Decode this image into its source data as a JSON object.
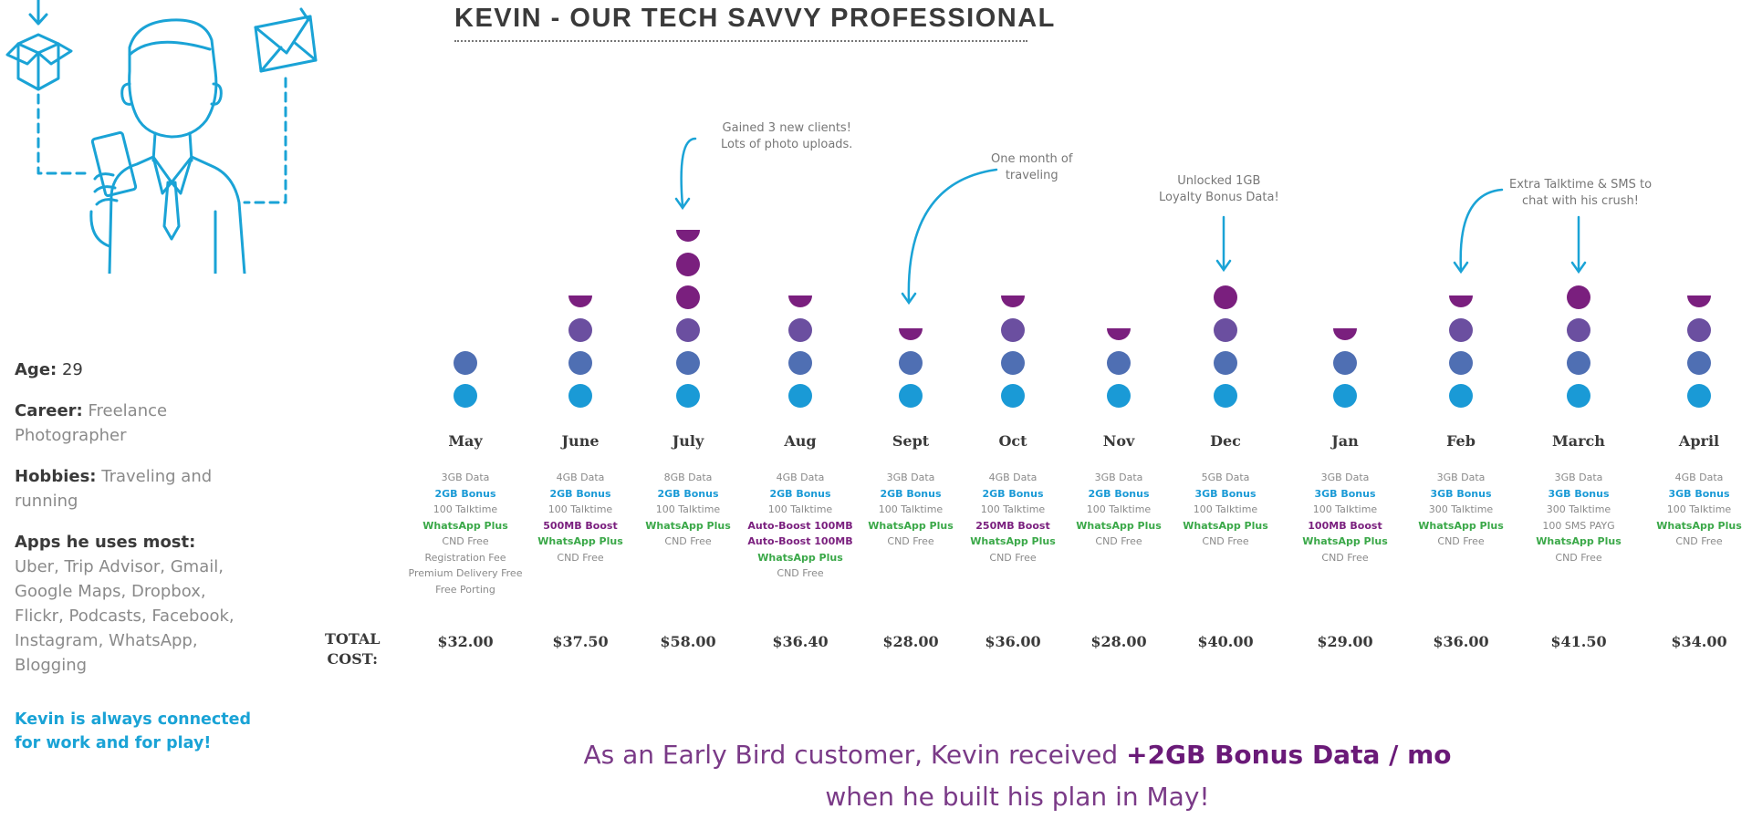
{
  "title": "KEVIN - OUR TECH SAVVY PROFESSIONAL",
  "persona": {
    "age_label": "Age:",
    "age_value": "29",
    "career_label": "Career:",
    "career_value": "Freelance Photographer",
    "hobbies_label": "Hobbies:",
    "hobbies_value": "Traveling and running",
    "apps_label": "Apps he uses most:",
    "apps_value": "Uber, Trip Advisor, Gmail, Google Maps, Dropbox, Flickr, Podcasts, Facebook, Instagram, WhatsApp, Blogging",
    "tagline": "Kevin is always connected for work and for play!"
  },
  "total_label_line1": "TOTAL",
  "total_label_line2": "COST:",
  "months": [
    {
      "name": "May",
      "dots": 2,
      "half": false,
      "cost": "$32.00",
      "lines": [
        [
          "3GB Data",
          "n"
        ],
        [
          "2GB Bonus",
          "b"
        ],
        [
          "100 Talktime",
          "n"
        ],
        [
          "WhatsApp Plus",
          "w"
        ],
        [
          "CND Free",
          "n"
        ],
        [
          "Registration Fee",
          "n"
        ],
        [
          "Premium Delivery Free",
          "n"
        ],
        [
          "Free Porting",
          "n"
        ]
      ]
    },
    {
      "name": "June",
      "dots": 3,
      "half": true,
      "cost": "$37.50",
      "lines": [
        [
          "4GB Data",
          "n"
        ],
        [
          "2GB Bonus",
          "b"
        ],
        [
          "100 Talktime",
          "n"
        ],
        [
          "500MB Boost",
          "p"
        ],
        [
          "WhatsApp Plus",
          "w"
        ],
        [
          "CND Free",
          "n"
        ]
      ]
    },
    {
      "name": "July",
      "dots": 5,
      "half": true,
      "cost": "$58.00",
      "lines": [
        [
          "8GB Data",
          "n"
        ],
        [
          "2GB Bonus",
          "b"
        ],
        [
          "100 Talktime",
          "n"
        ],
        [
          "WhatsApp Plus",
          "w"
        ],
        [
          "CND Free",
          "n"
        ]
      ]
    },
    {
      "name": "Aug",
      "dots": 3,
      "half": true,
      "cost": "$36.40",
      "lines": [
        [
          "4GB Data",
          "n"
        ],
        [
          "2GB Bonus",
          "b"
        ],
        [
          "100 Talktime",
          "n"
        ],
        [
          "Auto-Boost 100MB",
          "p"
        ],
        [
          "Auto-Boost 100MB",
          "p"
        ],
        [
          "WhatsApp Plus",
          "w"
        ],
        [
          "CND Free",
          "n"
        ]
      ]
    },
    {
      "name": "Sept",
      "dots": 2,
      "half": true,
      "cost": "$28.00",
      "lines": [
        [
          "3GB Data",
          "n"
        ],
        [
          "2GB Bonus",
          "b"
        ],
        [
          "100 Talktime",
          "n"
        ],
        [
          "WhatsApp Plus",
          "w"
        ],
        [
          "CND Free",
          "n"
        ]
      ]
    },
    {
      "name": "Oct",
      "dots": 3,
      "half": true,
      "cost": "$36.00",
      "lines": [
        [
          "4GB Data",
          "n"
        ],
        [
          "2GB Bonus",
          "b"
        ],
        [
          "100 Talktime",
          "n"
        ],
        [
          "250MB Boost",
          "p"
        ],
        [
          "WhatsApp Plus",
          "w"
        ],
        [
          "CND Free",
          "n"
        ]
      ]
    },
    {
      "name": "Nov",
      "dots": 2,
      "half": true,
      "cost": "$28.00",
      "lines": [
        [
          "3GB Data",
          "n"
        ],
        [
          "2GB Bonus",
          "b"
        ],
        [
          "100 Talktime",
          "n"
        ],
        [
          "WhatsApp Plus",
          "w"
        ],
        [
          "CND Free",
          "n"
        ]
      ]
    },
    {
      "name": "Dec",
      "dots": 4,
      "half": false,
      "cost": "$40.00",
      "lines": [
        [
          "5GB Data",
          "n"
        ],
        [
          "3GB Bonus",
          "b"
        ],
        [
          "100 Talktime",
          "n"
        ],
        [
          "WhatsApp Plus",
          "w"
        ],
        [
          "CND Free",
          "n"
        ]
      ]
    },
    {
      "name": "Jan",
      "dots": 2,
      "half": true,
      "cost": "$29.00",
      "lines": [
        [
          "3GB Data",
          "n"
        ],
        [
          "3GB Bonus",
          "b"
        ],
        [
          "100 Talktime",
          "n"
        ],
        [
          "100MB Boost",
          "p"
        ],
        [
          "WhatsApp Plus",
          "w"
        ],
        [
          "CND Free",
          "n"
        ]
      ]
    },
    {
      "name": "Feb",
      "dots": 3,
      "half": true,
      "cost": "$36.00",
      "lines": [
        [
          "3GB Data",
          "n"
        ],
        [
          "3GB Bonus",
          "b"
        ],
        [
          "300 Talktime",
          "n"
        ],
        [
          "WhatsApp Plus",
          "w"
        ],
        [
          "CND Free",
          "n"
        ]
      ]
    },
    {
      "name": "March",
      "dots": 4,
      "half": false,
      "cost": "$41.50",
      "lines": [
        [
          "3GB Data",
          "n"
        ],
        [
          "3GB Bonus",
          "b"
        ],
        [
          "300 Talktime",
          "n"
        ],
        [
          "100 SMS PAYG",
          "n"
        ],
        [
          "WhatsApp Plus",
          "w"
        ],
        [
          "CND Free",
          "n"
        ]
      ]
    },
    {
      "name": "April",
      "dots": 3,
      "half": true,
      "cost": "$34.00",
      "lines": [
        [
          "4GB Data",
          "n"
        ],
        [
          "3GB Bonus",
          "b"
        ],
        [
          "100 Talktime",
          "n"
        ],
        [
          "WhatsApp Plus",
          "w"
        ],
        [
          "CND Free",
          "n"
        ]
      ]
    }
  ],
  "annotations": {
    "july_1": "Gained 3 new clients!",
    "july_2": "Lots of photo uploads.",
    "sept_1": "One month of",
    "sept_2": "traveling",
    "dec_1": "Unlocked 1GB",
    "dec_2": "Loyalty Bonus Data!",
    "feb_1": "Extra Talktime & SMS to",
    "feb_2": "chat with his crush!"
  },
  "bottom": {
    "part1": "As an Early Bird customer, Kevin received ",
    "highlight": "+2GB Bonus Data / mo",
    "line2": "when he built his plan in May!"
  },
  "colors": {
    "dot_bottom": "#1a9ad6",
    "dot_2": "#4f6fb3",
    "dot_3": "#6b4fa0",
    "dot_top": "#7a1f7e",
    "accent_blue": "#1aa3d6"
  }
}
